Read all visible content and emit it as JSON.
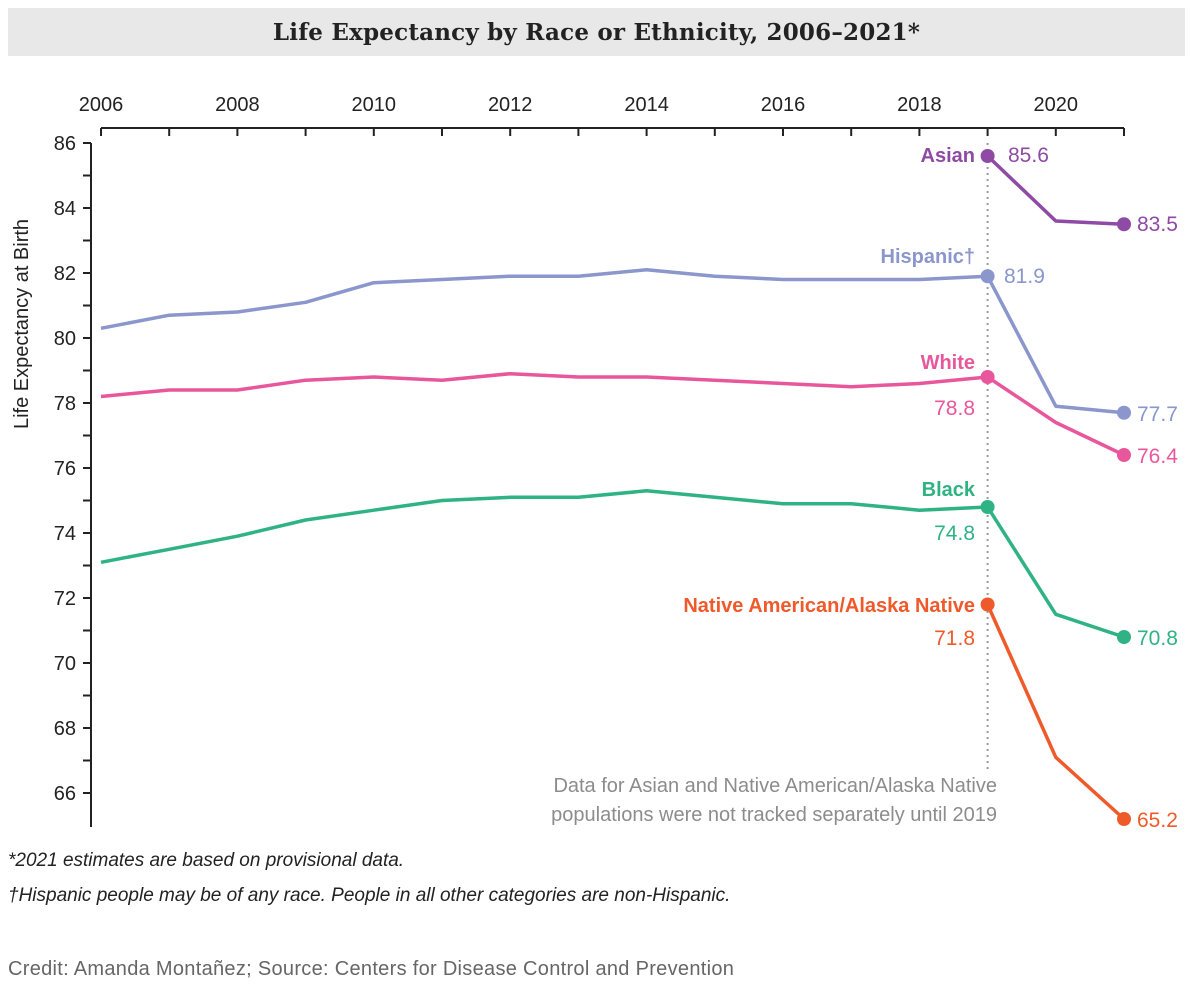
{
  "title": "Life Expectancy by Race or Ethnicity, 2006–2021*",
  "note_line1": "Data for Asian and Native American/Alaska Native",
  "note_line2": "populations were not tracked separately until 2019",
  "footnotes": {
    "star": "*2021 estimates are based on provisional data.",
    "dagger": "†Hispanic people may be of any race. People in all other categories are non-Hispanic."
  },
  "credit": "Credit: Amanda Montañez; Source: Centers for Disease Control and Prevention",
  "chart_data": {
    "type": "line",
    "ylabel": "Life Expectancy at Birth",
    "xlim": [
      2006,
      2021
    ],
    "ylim": [
      65,
      86
    ],
    "x_ticks": [
      2006,
      2008,
      2010,
      2012,
      2014,
      2016,
      2018,
      2020
    ],
    "y_ticks": [
      66,
      68,
      70,
      72,
      74,
      76,
      78,
      80,
      82,
      84,
      86
    ],
    "x_axis_position": "top",
    "reference_line_year": 2019,
    "series": [
      {
        "name": "Asian",
        "color": "#8e4aa4",
        "x": [
          2019,
          2020,
          2021
        ],
        "values": [
          85.6,
          83.6,
          83.5
        ],
        "labels": {
          "start": "85.6",
          "end": "83.5"
        }
      },
      {
        "name": "Hispanic†",
        "color": "#8a96cc",
        "x": [
          2006,
          2007,
          2008,
          2009,
          2010,
          2011,
          2012,
          2013,
          2014,
          2015,
          2016,
          2017,
          2018,
          2019,
          2020,
          2021
        ],
        "values": [
          80.3,
          80.7,
          80.8,
          81.1,
          81.7,
          81.8,
          81.9,
          81.9,
          82.1,
          81.9,
          81.8,
          81.8,
          81.8,
          81.9,
          77.9,
          77.7
        ],
        "labels": {
          "start": "81.9",
          "end": "77.7"
        }
      },
      {
        "name": "White",
        "color": "#e8579c",
        "x": [
          2006,
          2007,
          2008,
          2009,
          2010,
          2011,
          2012,
          2013,
          2014,
          2015,
          2016,
          2017,
          2018,
          2019,
          2020,
          2021
        ],
        "values": [
          78.2,
          78.4,
          78.4,
          78.7,
          78.8,
          78.7,
          78.9,
          78.8,
          78.8,
          78.7,
          78.6,
          78.5,
          78.6,
          78.8,
          77.4,
          76.4
        ],
        "labels": {
          "start": "78.8",
          "end": "76.4"
        }
      },
      {
        "name": "Black",
        "color": "#2fb384",
        "x": [
          2006,
          2007,
          2008,
          2009,
          2010,
          2011,
          2012,
          2013,
          2014,
          2015,
          2016,
          2017,
          2018,
          2019,
          2020,
          2021
        ],
        "values": [
          73.1,
          73.5,
          73.9,
          74.4,
          74.7,
          75.0,
          75.1,
          75.1,
          75.3,
          75.1,
          74.9,
          74.9,
          74.7,
          74.8,
          71.5,
          70.8
        ],
        "labels": {
          "start": "74.8",
          "end": "70.8"
        }
      },
      {
        "name": "Native American/Alaska Native",
        "color": "#ef5a2a",
        "x": [
          2019,
          2020,
          2021
        ],
        "values": [
          71.8,
          67.1,
          65.2
        ],
        "labels": {
          "start": "71.8",
          "end": "65.2"
        }
      }
    ]
  }
}
